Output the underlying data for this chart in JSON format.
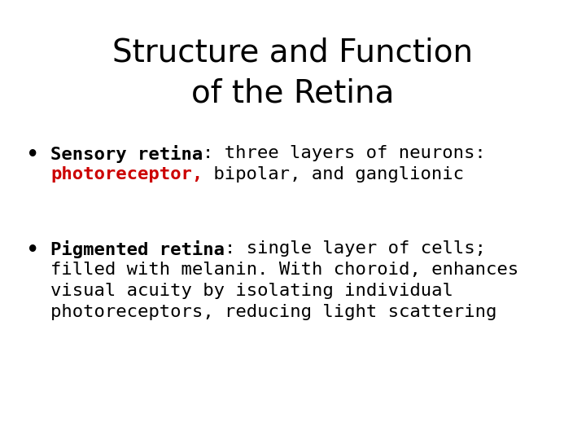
{
  "title_line1": "Structure and Function",
  "title_line2": "of the Retina",
  "title_fontsize": 28,
  "title_color": "#000000",
  "background_color": "#ffffff",
  "bullet1_bold": "Sensory retina",
  "bullet1_colon": ": three layers of neurons:",
  "bullet1_red": "photoreceptor,",
  "bullet1_rest": " bipolar, and ganglionic",
  "bullet2_bold": "Pigmented retina",
  "bullet2_colon": ": single layer of cells;",
  "bullet2_rest1": "filled with melanin. With choroid, enhances",
  "bullet2_rest2": "visual acuity by isolating individual",
  "bullet2_rest3": "photoreceptors, reducing light scattering",
  "body_fontsize": 16,
  "bold_color": "#000000",
  "red_color": "#cc0000",
  "normal_color": "#000000",
  "title_font": "DejaVu Sans",
  "body_font": "DejaVu Sans Mono"
}
